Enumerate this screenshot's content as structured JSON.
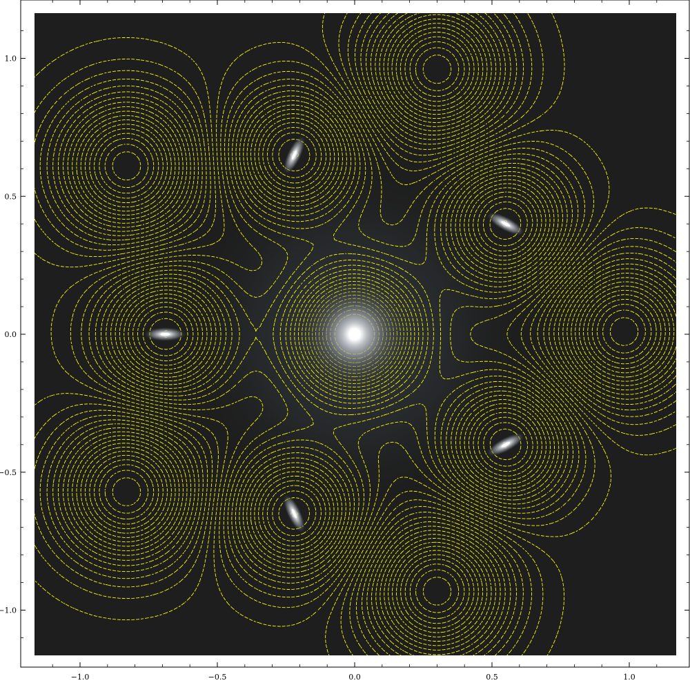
{
  "chart_data": {
    "type": "heatmap",
    "title": "",
    "xlabel": "",
    "ylabel": "",
    "xlim": [
      -1.2,
      1.2
    ],
    "ylim": [
      -1.2,
      1.2
    ],
    "x_ticks": [
      {
        "value": -1.0,
        "label": "−1.0"
      },
      {
        "value": -0.5,
        "label": "−0.5"
      },
      {
        "value": 0.0,
        "label": "0.0"
      },
      {
        "value": 0.5,
        "label": "0.5"
      },
      {
        "value": 1.0,
        "label": "1.0"
      }
    ],
    "y_ticks": [
      {
        "value": 1.0,
        "label": "1.0"
      },
      {
        "value": 0.5,
        "label": "0.5"
      },
      {
        "value": 0.0,
        "label": "0.0"
      },
      {
        "value": -0.5,
        "label": "−0.5"
      },
      {
        "value": -1.0,
        "label": "−1.0"
      }
    ],
    "minor_tick_step": 0.1,
    "background_color": "#1e1e1e",
    "contour_color": "#ffff00",
    "contour_style": "dashed",
    "bright_centers": [
      {
        "x": 0.0,
        "y": 0.0,
        "shape": "round"
      },
      {
        "x": -0.69,
        "y": 0.0,
        "shape": "ellipse",
        "angle_deg": 0
      },
      {
        "x": -0.22,
        "y": 0.65,
        "shape": "ellipse",
        "angle_deg": 65
      },
      {
        "x": -0.22,
        "y": -0.65,
        "shape": "ellipse",
        "angle_deg": -65
      },
      {
        "x": 0.55,
        "y": 0.4,
        "shape": "ellipse",
        "angle_deg": -28
      },
      {
        "x": 0.55,
        "y": -0.4,
        "shape": "ellipse",
        "angle_deg": 28
      }
    ],
    "ring_centers": [
      {
        "x": -0.83,
        "y": 0.61
      },
      {
        "x": 0.3,
        "y": 0.96
      },
      {
        "x": 0.98,
        "y": 0.01
      },
      {
        "x": -0.83,
        "y": -0.57
      },
      {
        "x": 0.3,
        "y": -0.93
      }
    ]
  }
}
